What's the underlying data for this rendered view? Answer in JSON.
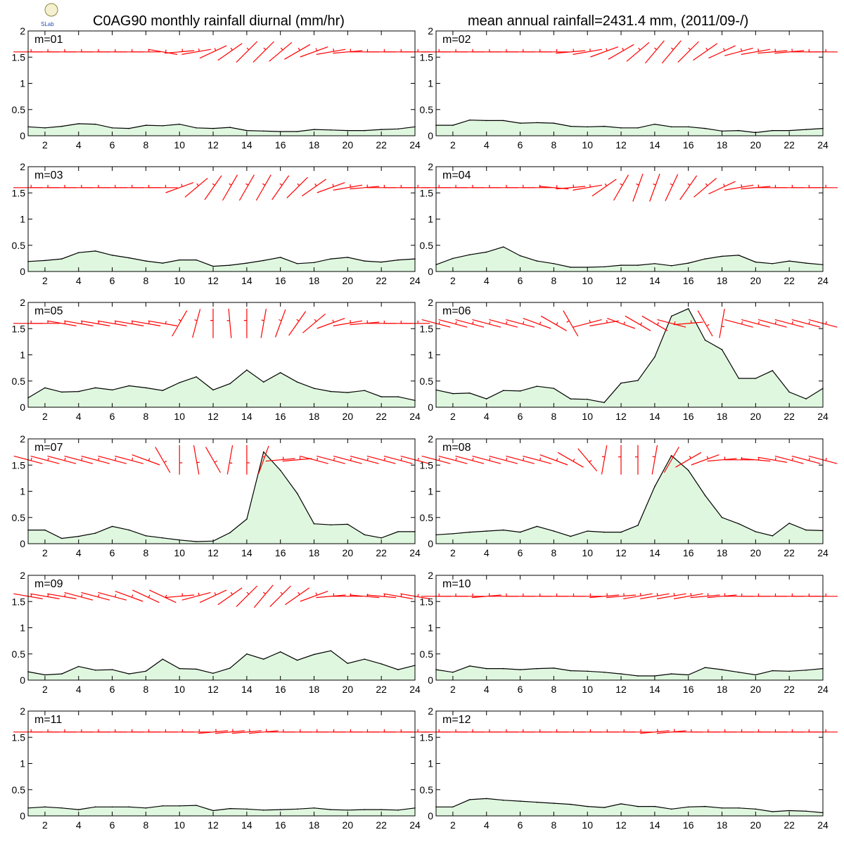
{
  "header": {
    "left_title": "C0AG90 monthly rainfall diurnal (mm/hr)",
    "right_title": "mean annual rainfall=2431.4 mm, (2011/09-/)",
    "logo_text": "SLab"
  },
  "chart_data": {
    "type": "area",
    "x": [
      1,
      2,
      3,
      4,
      5,
      6,
      7,
      8,
      9,
      10,
      11,
      12,
      13,
      14,
      15,
      16,
      17,
      18,
      19,
      20,
      21,
      22,
      23,
      24
    ],
    "xticks": [
      2,
      4,
      6,
      8,
      10,
      12,
      14,
      16,
      18,
      20,
      22,
      24
    ],
    "yticks": [
      0,
      0.5,
      1,
      1.5,
      2
    ],
    "ytick_labels": [
      "0",
      "0.5",
      "1",
      "1.5",
      "2"
    ],
    "ylim": [
      0,
      2
    ],
    "xlim": [
      1,
      24
    ],
    "wind_barb_baseline": 1.6,
    "panels": [
      {
        "label": "m=01",
        "values": [
          0.17,
          0.15,
          0.18,
          0.23,
          0.22,
          0.15,
          0.14,
          0.2,
          0.19,
          0.22,
          0.15,
          0.14,
          0.16,
          0.1,
          0.09,
          0.08,
          0.08,
          0.12,
          0.11,
          0.1,
          0.1,
          0.12,
          0.13,
          0.17
        ],
        "wind_angles": [
          0,
          0,
          0,
          0,
          0,
          0,
          0,
          0,
          -10,
          5,
          10,
          25,
          35,
          45,
          45,
          40,
          30,
          20,
          10,
          5,
          0,
          0,
          0,
          0
        ]
      },
      {
        "label": "m=02",
        "values": [
          0.2,
          0.2,
          0.3,
          0.29,
          0.29,
          0.24,
          0.25,
          0.24,
          0.18,
          0.17,
          0.18,
          0.15,
          0.15,
          0.22,
          0.17,
          0.17,
          0.14,
          0.09,
          0.1,
          0.06,
          0.1,
          0.1,
          0.12,
          0.14
        ],
        "wind_angles": [
          0,
          0,
          0,
          0,
          0,
          0,
          0,
          0,
          5,
          10,
          20,
          30,
          40,
          50,
          50,
          45,
          35,
          25,
          15,
          10,
          5,
          5,
          0,
          0
        ]
      },
      {
        "label": "m=03",
        "values": [
          0.19,
          0.21,
          0.24,
          0.36,
          0.39,
          0.31,
          0.26,
          0.2,
          0.16,
          0.22,
          0.22,
          0.1,
          0.12,
          0.16,
          0.21,
          0.27,
          0.15,
          0.17,
          0.24,
          0.27,
          0.2,
          0.18,
          0.22,
          0.24
        ],
        "wind_angles": [
          0,
          0,
          0,
          0,
          0,
          0,
          0,
          0,
          0,
          20,
          40,
          55,
          60,
          60,
          60,
          55,
          45,
          35,
          20,
          10,
          5,
          0,
          0,
          0
        ]
      },
      {
        "label": "m=04",
        "values": [
          0.13,
          0.25,
          0.32,
          0.37,
          0.47,
          0.3,
          0.2,
          0.15,
          0.08,
          0.08,
          0.09,
          0.12,
          0.12,
          0.15,
          0.11,
          0.16,
          0.24,
          0.29,
          0.31,
          0.18,
          0.15,
          0.2,
          0.16,
          0.13
        ],
        "wind_angles": [
          0,
          0,
          0,
          0,
          0,
          0,
          0,
          -5,
          5,
          10,
          35,
          60,
          70,
          70,
          65,
          55,
          40,
          25,
          10,
          5,
          0,
          0,
          0,
          0
        ]
      },
      {
        "label": "m=05",
        "values": [
          0.18,
          0.37,
          0.29,
          0.3,
          0.37,
          0.33,
          0.41,
          0.37,
          0.32,
          0.47,
          0.58,
          0.33,
          0.45,
          0.71,
          0.48,
          0.66,
          0.48,
          0.36,
          0.3,
          0.28,
          0.32,
          0.2,
          0.2,
          0.13
        ],
        "wind_angles": [
          0,
          0,
          -10,
          -10,
          -10,
          -10,
          -10,
          -10,
          -10,
          60,
          75,
          90,
          95,
          90,
          80,
          70,
          55,
          40,
          20,
          10,
          5,
          0,
          0,
          0
        ]
      },
      {
        "label": "m=06",
        "values": [
          0.33,
          0.26,
          0.27,
          0.16,
          0.32,
          0.31,
          0.4,
          0.36,
          0.16,
          0.15,
          0.09,
          0.46,
          0.51,
          0.96,
          1.74,
          1.88,
          1.28,
          1.1,
          0.55,
          0.55,
          0.7,
          0.29,
          0.16,
          0.36
        ],
        "wind_angles": [
          -15,
          -15,
          -15,
          -15,
          -15,
          -15,
          -20,
          -30,
          120,
          15,
          10,
          -20,
          -30,
          -30,
          -15,
          5,
          -60,
          -100,
          -15,
          -15,
          -15,
          -15,
          -15,
          -15
        ]
      },
      {
        "label": "m=07",
        "values": [
          0.26,
          0.26,
          0.1,
          0.14,
          0.2,
          0.33,
          0.26,
          0.15,
          0.11,
          0.07,
          0.04,
          0.05,
          0.21,
          0.47,
          1.75,
          1.4,
          0.96,
          0.38,
          0.36,
          0.37,
          0.17,
          0.11,
          0.23,
          0.23
        ],
        "wind_angles": [
          -15,
          -15,
          -15,
          -15,
          -15,
          -15,
          -15,
          -20,
          -60,
          -90,
          -80,
          -60,
          -100,
          -90,
          70,
          5,
          5,
          -15,
          -15,
          -15,
          -15,
          -15,
          -15,
          -15
        ]
      },
      {
        "label": "m=08",
        "values": [
          0.17,
          0.19,
          0.22,
          0.24,
          0.26,
          0.22,
          0.33,
          0.24,
          0.14,
          0.24,
          0.22,
          0.22,
          0.35,
          1.09,
          1.68,
          1.4,
          0.92,
          0.5,
          0.38,
          0.23,
          0.15,
          0.39,
          0.26,
          0.25
        ],
        "wind_angles": [
          -15,
          -15,
          -15,
          -15,
          -15,
          -15,
          -15,
          -20,
          -30,
          -50,
          80,
          90,
          90,
          80,
          60,
          30,
          20,
          5,
          0,
          -5,
          -10,
          -15,
          -15,
          -15
        ]
      },
      {
        "label": "m=09",
        "values": [
          0.16,
          0.1,
          0.12,
          0.26,
          0.19,
          0.2,
          0.12,
          0.17,
          0.4,
          0.22,
          0.21,
          0.13,
          0.23,
          0.5,
          0.4,
          0.54,
          0.38,
          0.49,
          0.56,
          0.32,
          0.4,
          0.31,
          0.2,
          0.28
        ],
        "wind_angles": [
          -10,
          -10,
          -10,
          -15,
          -15,
          -15,
          -20,
          -25,
          -25,
          5,
          15,
          25,
          35,
          45,
          50,
          45,
          35,
          20,
          5,
          0,
          -5,
          -5,
          -10,
          -10
        ]
      },
      {
        "label": "m=10",
        "values": [
          0.2,
          0.15,
          0.27,
          0.22,
          0.22,
          0.2,
          0.22,
          0.23,
          0.18,
          0.17,
          0.15,
          0.12,
          0.08,
          0.08,
          0.12,
          0.1,
          0.24,
          0.2,
          0.15,
          0.1,
          0.18,
          0.17,
          0.19,
          0.22
        ],
        "wind_angles": [
          0,
          0,
          0,
          5,
          0,
          0,
          0,
          0,
          0,
          0,
          5,
          5,
          10,
          10,
          10,
          10,
          5,
          5,
          0,
          0,
          0,
          0,
          0,
          0
        ]
      },
      {
        "label": "m=11",
        "values": [
          0.15,
          0.17,
          0.15,
          0.12,
          0.17,
          0.17,
          0.17,
          0.15,
          0.19,
          0.19,
          0.2,
          0.1,
          0.14,
          0.13,
          0.11,
          0.12,
          0.13,
          0.15,
          0.12,
          0.11,
          0.12,
          0.12,
          0.11,
          0.15
        ],
        "wind_angles": [
          0,
          0,
          0,
          0,
          0,
          0,
          0,
          0,
          0,
          0,
          0,
          5,
          5,
          5,
          5,
          0,
          0,
          0,
          0,
          0,
          0,
          0,
          0,
          0
        ]
      },
      {
        "label": "m=12",
        "values": [
          0.17,
          0.17,
          0.31,
          0.33,
          0.3,
          0.28,
          0.26,
          0.24,
          0.22,
          0.18,
          0.16,
          0.23,
          0.18,
          0.18,
          0.13,
          0.17,
          0.18,
          0.15,
          0.15,
          0.13,
          0.08,
          0.1,
          0.09,
          0.06
        ],
        "wind_angles": [
          0,
          0,
          0,
          0,
          0,
          0,
          0,
          0,
          0,
          0,
          0,
          0,
          0,
          5,
          5,
          0,
          0,
          0,
          0,
          0,
          0,
          0,
          0,
          0
        ]
      }
    ]
  }
}
